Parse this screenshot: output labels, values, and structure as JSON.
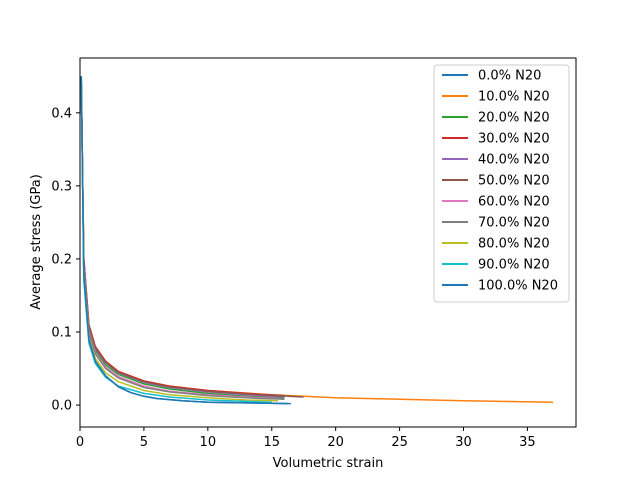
{
  "chart_data": {
    "type": "line",
    "title": "",
    "xlabel": "Volumetric strain",
    "ylabel": "Average stress (GPa)",
    "xlim": [
      0,
      38.8
    ],
    "ylim": [
      -0.03,
      0.475
    ],
    "xticks": [
      0,
      5,
      10,
      15,
      20,
      25,
      30,
      35
    ],
    "yticks": [
      0.0,
      0.1,
      0.2,
      0.3,
      0.4
    ],
    "ytick_labels": [
      "0.0",
      "0.1",
      "0.2",
      "0.3",
      "0.4"
    ],
    "grid": false,
    "legend_position": "top-right",
    "series": [
      {
        "name": "0.0% N20",
        "color": "#1f77b4",
        "x": [
          0.1,
          0.3,
          0.7,
          1.2,
          2,
          3,
          4,
          5,
          6,
          8,
          10,
          13,
          16.5
        ],
        "y": [
          0.45,
          0.18,
          0.09,
          0.06,
          0.04,
          0.025,
          0.017,
          0.012,
          0.009,
          0.006,
          0.004,
          0.003,
          0.002
        ]
      },
      {
        "name": "10.0% N20",
        "color": "#ff7f0e",
        "x": [
          0.1,
          0.3,
          0.7,
          1.2,
          2,
          3,
          5,
          7,
          10,
          15,
          20,
          25,
          30,
          37
        ],
        "y": [
          0.44,
          0.2,
          0.11,
          0.08,
          0.06,
          0.046,
          0.033,
          0.026,
          0.02,
          0.014,
          0.01,
          0.008,
          0.006,
          0.004
        ]
      },
      {
        "name": "20.0% N20",
        "color": "#2ca02c",
        "x": [
          0.1,
          0.3,
          0.7,
          1.2,
          2,
          3,
          5,
          7,
          10,
          13,
          16
        ],
        "y": [
          0.44,
          0.19,
          0.1,
          0.075,
          0.055,
          0.042,
          0.029,
          0.022,
          0.016,
          0.012,
          0.01
        ]
      },
      {
        "name": "30.0% N20",
        "color": "#d62728",
        "x": [
          0.1,
          0.3,
          0.7,
          1.2,
          2,
          3,
          5,
          7,
          10,
          13,
          16
        ],
        "y": [
          0.44,
          0.2,
          0.11,
          0.08,
          0.06,
          0.046,
          0.033,
          0.026,
          0.02,
          0.016,
          0.013
        ]
      },
      {
        "name": "40.0% N20",
        "color": "#9467bd",
        "x": [
          0.1,
          0.3,
          0.7,
          1.2,
          2,
          3,
          5,
          7,
          10,
          13,
          16
        ],
        "y": [
          0.44,
          0.2,
          0.105,
          0.078,
          0.058,
          0.044,
          0.031,
          0.024,
          0.018,
          0.014,
          0.011
        ]
      },
      {
        "name": "50.0% N20",
        "color": "#8c564b",
        "x": [
          0.1,
          0.3,
          0.7,
          1.2,
          2,
          3,
          5,
          7,
          10,
          14,
          17.5
        ],
        "y": [
          0.44,
          0.2,
          0.108,
          0.079,
          0.059,
          0.045,
          0.032,
          0.025,
          0.019,
          0.014,
          0.011
        ]
      },
      {
        "name": "60.0% N20",
        "color": "#e377c2",
        "x": [
          0.1,
          0.3,
          0.7,
          1.2,
          2,
          3,
          5,
          7,
          10,
          13,
          15.5
        ],
        "y": [
          0.44,
          0.19,
          0.1,
          0.072,
          0.052,
          0.039,
          0.026,
          0.019,
          0.014,
          0.011,
          0.009
        ]
      },
      {
        "name": "70.0% N20",
        "color": "#7f7f7f",
        "x": [
          0.1,
          0.3,
          0.7,
          1.2,
          2,
          3,
          5,
          7,
          10,
          13,
          16
        ],
        "y": [
          0.44,
          0.19,
          0.098,
          0.07,
          0.05,
          0.037,
          0.024,
          0.018,
          0.013,
          0.01,
          0.008
        ]
      },
      {
        "name": "80.0% N20",
        "color": "#bcbd22",
        "x": [
          0.1,
          0.3,
          0.7,
          1.2,
          2,
          3,
          5,
          7,
          10,
          13,
          15.5
        ],
        "y": [
          0.44,
          0.18,
          0.092,
          0.064,
          0.044,
          0.032,
          0.02,
          0.014,
          0.01,
          0.007,
          0.006
        ]
      },
      {
        "name": "90.0% N20",
        "color": "#17becf",
        "x": [
          0.1,
          0.3,
          0.7,
          1.2,
          2,
          3,
          5,
          7,
          10,
          13,
          15
        ],
        "y": [
          0.44,
          0.17,
          0.085,
          0.057,
          0.038,
          0.026,
          0.016,
          0.011,
          0.007,
          0.005,
          0.004
        ]
      },
      {
        "name": "100.0% N20",
        "color": "#1f77b4",
        "x": [
          0.1,
          0.3,
          0.7,
          1.2,
          2,
          3,
          4,
          5,
          6,
          8,
          10,
          13,
          16.3
        ],
        "y": [
          0.45,
          0.18,
          0.09,
          0.06,
          0.04,
          0.025,
          0.017,
          0.012,
          0.009,
          0.006,
          0.004,
          0.003,
          0.002
        ]
      }
    ]
  }
}
